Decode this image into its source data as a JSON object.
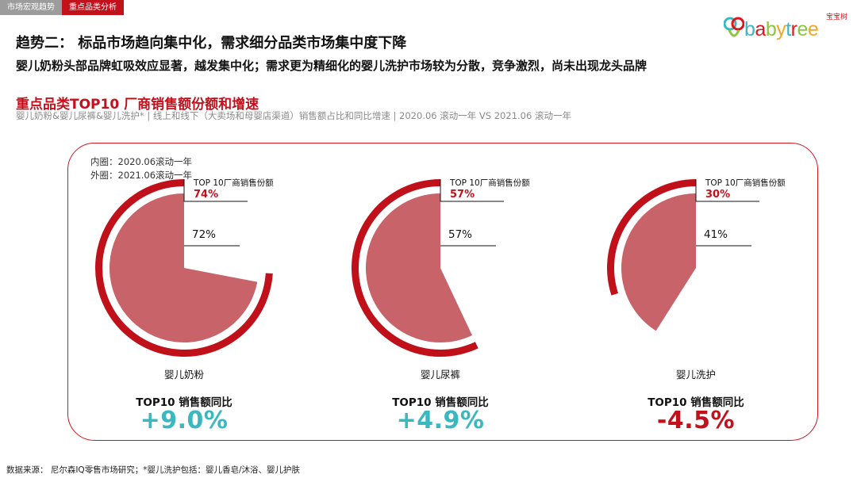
{
  "tabs": [
    {
      "label": "市场宏观趋势",
      "active": false
    },
    {
      "label": "重点品类分析",
      "active": true
    }
  ],
  "logo": {
    "cn": "宝宝树",
    "en": "babytree"
  },
  "heading": "趋势二： 标品市场趋向集中化，需求细分品类市场集中度下降",
  "subheading": "婴儿奶粉头部品牌虹吸效应显著，越发集中化；需求更为精细化的婴儿洗护市场较为分散，竞争激烈，尚未出现龙头品牌",
  "section": {
    "title": "重点品类TOP10 厂商销售额份额和增速",
    "subtitle": "婴儿奶粉&婴儿尿裤&婴儿洗护* | 线上和线下（大卖场和母婴店渠道）销售额占比和同比增速 | 2020.06 滚动一年 VS 2021.06 滚动一年"
  },
  "legend": {
    "inner": "内圈：2020.06滚动一年",
    "outer": "外圈：2021.06滚动一年"
  },
  "colors": {
    "outer": "#c0111a",
    "inner": "#c9636a",
    "positive": "#3bb8bf",
    "negative": "#c3111c",
    "frame": "#d0141c"
  },
  "chart_data": {
    "type": "pie",
    "share_label": "TOP 10厂商销售份额",
    "growth_label": "TOP10 销售额同比",
    "charts": [
      {
        "category": "婴儿奶粉",
        "inner": 72,
        "outer": 74,
        "inner_label": "72%",
        "outer_label": "74%",
        "growth": 9.0,
        "growth_label": "+9.0%"
      },
      {
        "category": "婴儿尿裤",
        "inner": 57,
        "outer": 57,
        "inner_label": "57%",
        "outer_label": "57%",
        "growth": 4.9,
        "growth_label": "+4.9%"
      },
      {
        "category": "婴儿洗护",
        "inner": 41,
        "outer": 30,
        "inner_label": "41%",
        "outer_label": "30%",
        "growth": -4.5,
        "growth_label": "-4.5%"
      }
    ]
  },
  "source": "数据来源： 尼尔森IQ零售市场研究；*婴儿洗护包括：婴儿香皂/沐浴、婴儿护肤"
}
